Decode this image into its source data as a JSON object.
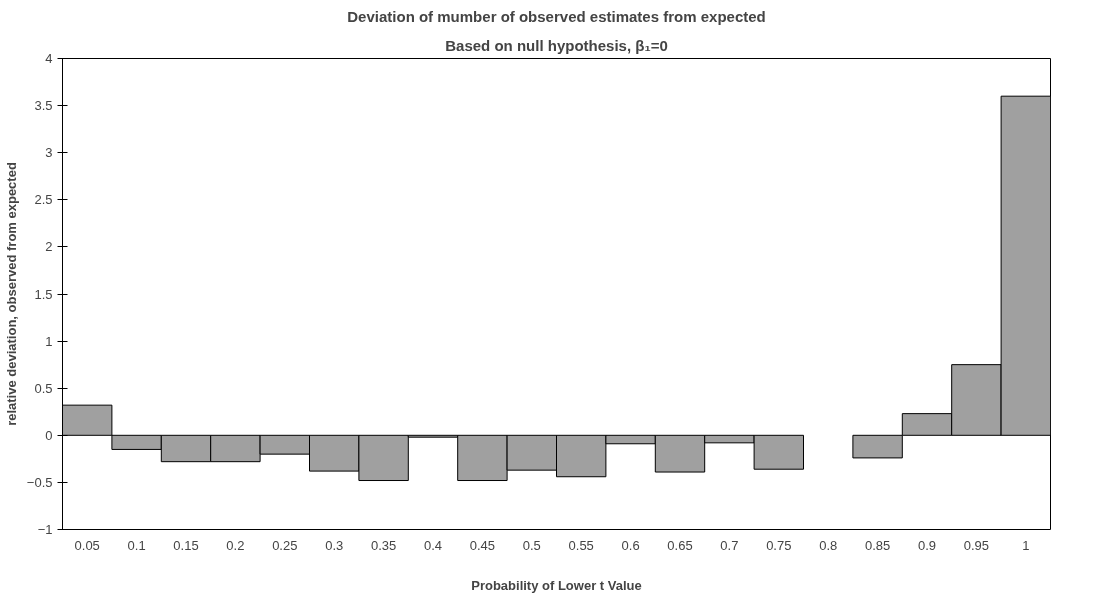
{
  "chart_data": {
    "type": "bar",
    "title": "Deviation of mumber of observed estimates from expected",
    "subtitle": "Based on null hypothesis, β₁=0",
    "xlabel": "Probability of Lower t Value",
    "ylabel": "relative deviation, observed from expected",
    "categories": [
      "0.05",
      "0.1",
      "0.15",
      "0.2",
      "0.25",
      "0.3",
      "0.35",
      "0.4",
      "0.45",
      "0.5",
      "0.55",
      "0.6",
      "0.65",
      "0.7",
      "0.75",
      "0.8",
      "0.85",
      "0.9",
      "0.95",
      "1"
    ],
    "values": [
      0.32,
      -0.15,
      -0.28,
      -0.28,
      -0.2,
      -0.38,
      -0.48,
      -0.02,
      -0.48,
      -0.37,
      -0.44,
      -0.09,
      -0.39,
      -0.08,
      -0.36,
      null,
      -0.24,
      0.23,
      0.75,
      3.6
    ],
    "color": "#a0a0a0",
    "ylim": [
      -1,
      4
    ],
    "yticks": [
      -1,
      -0.5,
      0,
      0.5,
      1,
      1.5,
      2,
      2.5,
      3,
      3.5,
      4
    ],
    "grid": false
  }
}
